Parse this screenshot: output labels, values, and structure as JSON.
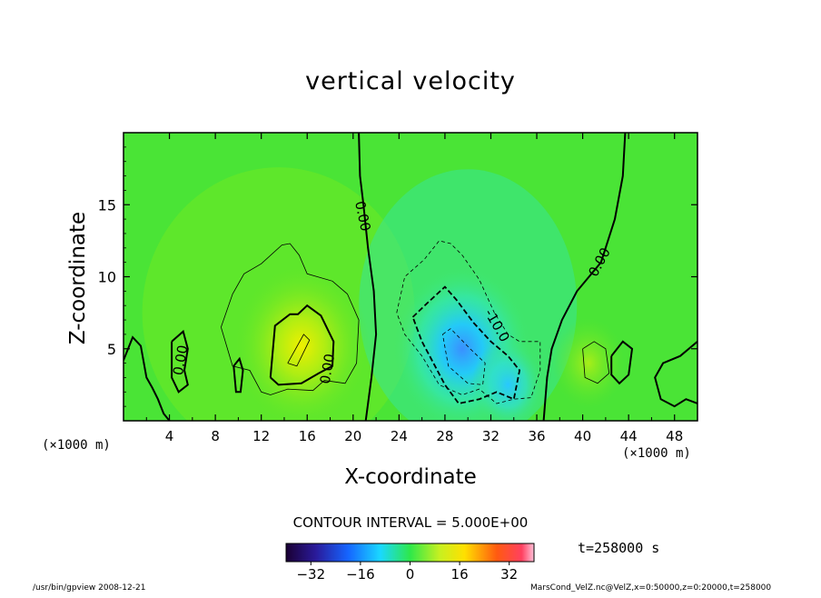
{
  "chart_data": {
    "type": "heatmap",
    "title": "vertical velocity",
    "xlabel": "X-coordinate",
    "ylabel": "Z-coordinate",
    "x_unit_label": "(×1000 m)",
    "xlim": [
      0,
      50
    ],
    "ylim": [
      0,
      20
    ],
    "x_ticks": [
      4,
      8,
      12,
      16,
      20,
      24,
      28,
      32,
      36,
      40,
      44,
      48
    ],
    "y_ticks": [
      5,
      10,
      15
    ],
    "contour_interval_label": "CONTOUR INTERVAL = 5.000E+00",
    "contour_labels": [
      "0.00",
      "0.00",
      "0.00",
      "0.00",
      "-10.0"
    ],
    "colorbar": {
      "range": [
        -40,
        40
      ],
      "ticks": [
        -32,
        -16,
        0,
        16,
        32
      ]
    },
    "features": [
      {
        "sign": "positive",
        "x": 15.5,
        "z": 5.2,
        "peak": 13
      },
      {
        "sign": "negative",
        "x": 29.5,
        "z": 5.0,
        "peak": -17
      },
      {
        "sign": "negative",
        "x": 33.5,
        "z": 2.5,
        "peak": -8
      },
      {
        "sign": "positive",
        "x": 40.5,
        "z": 4.0,
        "peak": 5
      }
    ]
  },
  "time_label": "t=258000 s",
  "footer": {
    "left": "/usr/bin/gpview   2008-12-21",
    "right": "MarsCond_VelZ.nc@VelZ,x=0:50000,z=0:20000,t=258000"
  }
}
